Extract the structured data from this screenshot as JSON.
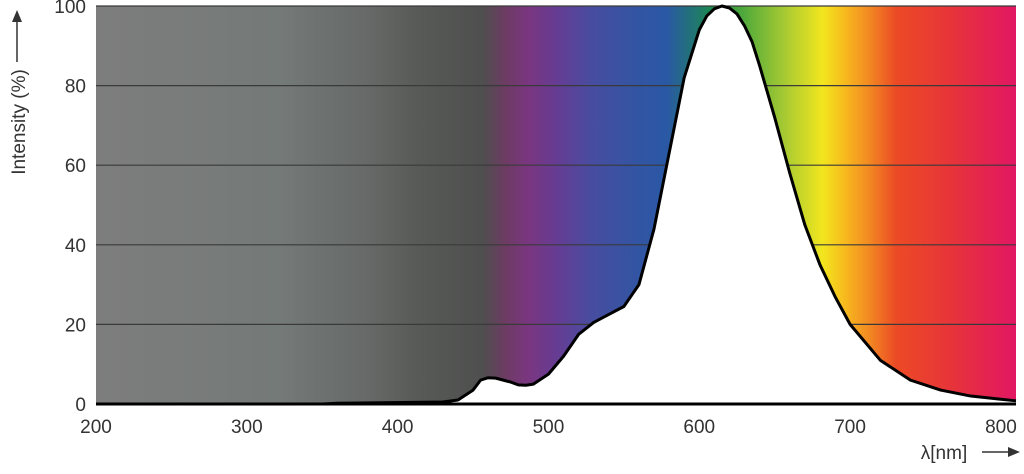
{
  "chart_data": {
    "type": "area",
    "title": "",
    "xlabel": "λ[nm]",
    "ylabel": "Intensity (%)",
    "xlim": [
      200,
      810
    ],
    "ylim": [
      0,
      100
    ],
    "x_ticks": [
      "200",
      "300",
      "400",
      "500",
      "600",
      "700",
      "800"
    ],
    "y_ticks": [
      "0",
      "20",
      "40",
      "60",
      "80",
      "100"
    ],
    "grid": true,
    "background": "visible spectrum gradient (UV grey, violet, blue, green, yellow, orange, red)",
    "series": [
      {
        "x": [
          200,
          350,
          360,
          430,
          440,
          450,
          455,
          460,
          465,
          470,
          475,
          480,
          485,
          490,
          500,
          510,
          520,
          530,
          540,
          550,
          560,
          570,
          580,
          590,
          600,
          605,
          610,
          615,
          620,
          625,
          630,
          635,
          640,
          650,
          660,
          670,
          680,
          690,
          700,
          720,
          740,
          760,
          780,
          800,
          810
        ],
        "y": [
          0,
          0,
          0.2,
          0.5,
          1.0,
          3.5,
          6.0,
          6.6,
          6.5,
          6.0,
          5.5,
          4.8,
          4.7,
          5.0,
          7.5,
          12.0,
          17.5,
          20.5,
          22.5,
          24.5,
          30.0,
          44.0,
          63.0,
          82.0,
          94.0,
          97.5,
          99.3,
          100.0,
          99.5,
          98.0,
          95.0,
          91.0,
          85.0,
          72.0,
          58.0,
          45.0,
          35.0,
          27.0,
          20.0,
          11.0,
          6.0,
          3.5,
          2.0,
          1.2,
          0.8
        ]
      }
    ]
  }
}
